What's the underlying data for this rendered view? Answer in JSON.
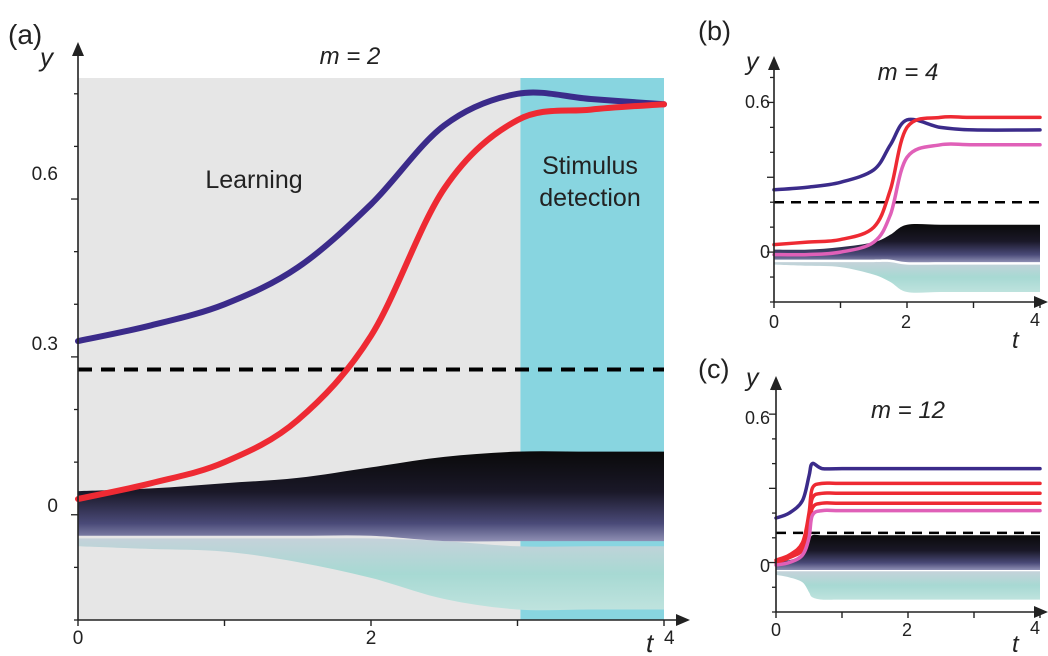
{
  "colors": {
    "learning_bg": "#e6e6e6",
    "detection_bg": "#88d5e0",
    "blue": "#3b2b8a",
    "red": "#ee2a33",
    "pink": "#e060b8",
    "dark": "#111111",
    "light": "#a8dcd6"
  },
  "chart_data": [
    {
      "panel": "a",
      "panel_label": "(a)",
      "type": "line",
      "title": "m = 2",
      "xlabel": "t",
      "ylabel": "y",
      "xlim": [
        0,
        4
      ],
      "ylim": [
        -0.2,
        0.83
      ],
      "x_ticks": [
        "0",
        "2",
        "4"
      ],
      "y_ticks": [
        "0",
        "0.3",
        "0.6"
      ],
      "threshold": 0.276,
      "regions": [
        {
          "name": "Learning",
          "x": [
            0,
            3.02
          ]
        },
        {
          "name": "Stimulus detection",
          "x": [
            3.02,
            4
          ]
        }
      ],
      "region_labels": {
        "learning": "Learning",
        "detection_line1": "Stimulus",
        "detection_line2": "detection"
      },
      "x": [
        0,
        0.5,
        1,
        1.5,
        2,
        2.5,
        3,
        3.5,
        4
      ],
      "series": [
        {
          "color": "blue",
          "values": [
            0.33,
            0.36,
            0.4,
            0.47,
            0.59,
            0.74,
            0.8,
            0.79,
            0.78
          ]
        },
        {
          "color": "red",
          "values": [
            0.03,
            0.06,
            0.1,
            0.18,
            0.34,
            0.62,
            0.75,
            0.77,
            0.78
          ]
        }
      ],
      "band_dark": {
        "upper": [
          0.045,
          0.05,
          0.06,
          0.07,
          0.09,
          0.11,
          0.12,
          0.12,
          0.12
        ],
        "lower": [
          -0.04,
          -0.04,
          -0.04,
          -0.04,
          -0.04,
          -0.05,
          -0.05,
          -0.05,
          -0.05
        ]
      },
      "band_light": {
        "upper": [
          -0.045,
          -0.045,
          -0.045,
          -0.045,
          -0.045,
          -0.05,
          -0.06,
          -0.06,
          -0.06
        ],
        "lower": [
          -0.06,
          -0.065,
          -0.07,
          -0.09,
          -0.12,
          -0.16,
          -0.18,
          -0.18,
          -0.18
        ]
      }
    },
    {
      "panel": "b",
      "panel_label": "(b)",
      "type": "line",
      "title": "m = 4",
      "xlabel": "t",
      "ylabel": "y",
      "xlim": [
        0,
        4
      ],
      "ylim": [
        -0.2,
        0.73
      ],
      "x_ticks": [
        "0",
        "2",
        "4"
      ],
      "y_ticks": [
        "0",
        "0.6"
      ],
      "threshold": 0.2,
      "x": [
        0,
        0.5,
        1,
        1.5,
        1.75,
        2,
        2.5,
        3,
        4
      ],
      "series": [
        {
          "color": "blue",
          "values": [
            0.25,
            0.26,
            0.28,
            0.33,
            0.43,
            0.53,
            0.5,
            0.49,
            0.49
          ]
        },
        {
          "color": "red",
          "values": [
            0.03,
            0.04,
            0.05,
            0.1,
            0.25,
            0.5,
            0.54,
            0.54,
            0.54
          ]
        },
        {
          "color": "pink",
          "values": [
            -0.01,
            -0.01,
            0.0,
            0.04,
            0.15,
            0.38,
            0.43,
            0.43,
            0.43
          ]
        }
      ],
      "band_dark": {
        "upper": [
          0.01,
          0.01,
          0.02,
          0.04,
          0.07,
          0.11,
          0.11,
          0.11,
          0.11
        ],
        "lower": [
          -0.03,
          -0.03,
          -0.03,
          -0.03,
          -0.03,
          -0.04,
          -0.04,
          -0.04,
          -0.04
        ]
      },
      "band_light": {
        "upper": [
          -0.04,
          -0.04,
          -0.04,
          -0.04,
          -0.04,
          -0.05,
          -0.05,
          -0.05,
          -0.05
        ],
        "lower": [
          -0.05,
          -0.055,
          -0.06,
          -0.09,
          -0.12,
          -0.16,
          -0.16,
          -0.16,
          -0.16
        ]
      }
    },
    {
      "panel": "c",
      "panel_label": "(c)",
      "type": "line",
      "title": "m = 12",
      "xlabel": "t",
      "ylabel": "y",
      "xlim": [
        0,
        4
      ],
      "ylim": [
        -0.2,
        0.73
      ],
      "x_ticks": [
        "0",
        "2",
        "4"
      ],
      "y_ticks": [
        "0",
        "0.6"
      ],
      "threshold": 0.12,
      "x": [
        0,
        0.2,
        0.4,
        0.5,
        0.55,
        0.7,
        1,
        2,
        4
      ],
      "series": [
        {
          "color": "blue",
          "values": [
            0.18,
            0.2,
            0.25,
            0.35,
            0.4,
            0.38,
            0.38,
            0.38,
            0.38
          ]
        },
        {
          "color": "red",
          "values": [
            0.01,
            0.03,
            0.08,
            0.2,
            0.3,
            0.32,
            0.32,
            0.32,
            0.32
          ]
        },
        {
          "color": "red",
          "values": [
            0.0,
            0.02,
            0.06,
            0.16,
            0.26,
            0.28,
            0.28,
            0.28,
            0.28
          ]
        },
        {
          "color": "red",
          "values": [
            0.0,
            0.02,
            0.05,
            0.13,
            0.22,
            0.24,
            0.24,
            0.24,
            0.24
          ]
        },
        {
          "color": "pink",
          "values": [
            -0.01,
            0.0,
            0.03,
            0.1,
            0.19,
            0.21,
            0.21,
            0.21,
            0.21
          ]
        }
      ],
      "band_dark": {
        "upper": [
          0.005,
          0.01,
          0.03,
          0.08,
          0.11,
          0.11,
          0.11,
          0.11,
          0.11
        ],
        "lower": [
          -0.03,
          -0.03,
          -0.03,
          -0.03,
          -0.03,
          -0.03,
          -0.03,
          -0.03,
          -0.03
        ]
      },
      "band_light": {
        "upper": [
          -0.035,
          -0.035,
          -0.035,
          -0.035,
          -0.035,
          -0.035,
          -0.035,
          -0.035,
          -0.035
        ],
        "lower": [
          -0.05,
          -0.06,
          -0.08,
          -0.12,
          -0.14,
          -0.15,
          -0.15,
          -0.15,
          -0.15
        ]
      }
    }
  ]
}
